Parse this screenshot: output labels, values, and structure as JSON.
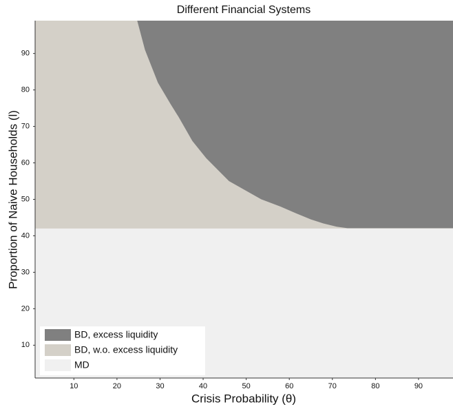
{
  "chart_data": {
    "type": "region",
    "title": "Different Financial Systems",
    "x_label": "Crisis Probability (θ)",
    "y_label": "Proportion of Naive Households (l)",
    "xlim": [
      1,
      98
    ],
    "ylim": [
      1,
      99
    ],
    "xticks": [
      10,
      20,
      30,
      40,
      50,
      60,
      70,
      80,
      90
    ],
    "yticks": [
      10,
      20,
      30,
      40,
      50,
      60,
      70,
      80,
      90
    ],
    "legend": "lower left",
    "series": [
      {
        "name": "BD, excess liquidity",
        "color": "#808080",
        "x": [
          24.7,
          26.5,
          29.5,
          32.5,
          34.3,
          37.5,
          40.7,
          46,
          53.5,
          58,
          61.5,
          65,
          67.9,
          71,
          73.5
        ],
        "y": [
          99,
          91,
          82,
          76,
          72.6,
          66,
          61.3,
          55,
          50,
          48,
          46.2,
          44.5,
          43.4,
          42.5,
          42.1
        ]
      },
      {
        "name": "BD, w.o. excess liquidity",
        "color": "#d4d0c8"
      },
      {
        "name": "MD",
        "color": "#f0f0f0",
        "values": [
          42
        ]
      }
    ]
  }
}
